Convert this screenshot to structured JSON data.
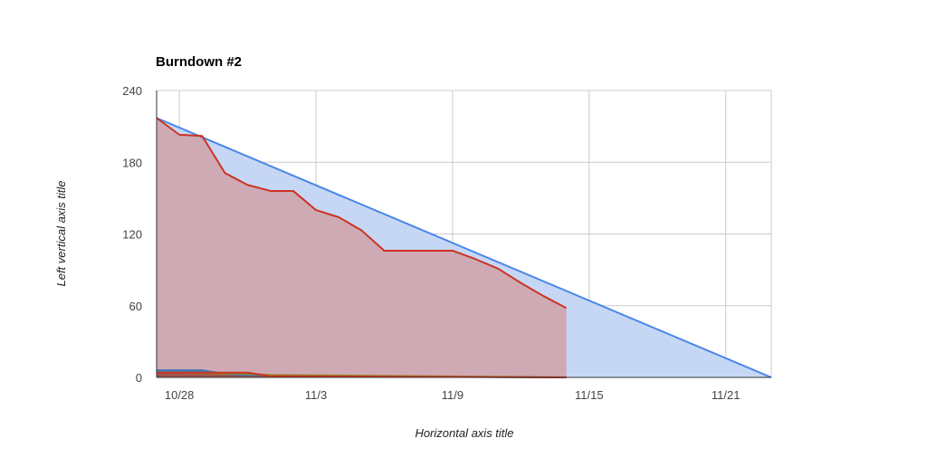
{
  "chart_data": {
    "type": "area",
    "title": "Burndown #2",
    "xlabel": "Horizontal axis title",
    "ylabel": "Left vertical axis title",
    "x_axis": {
      "type": "date",
      "min": "2024-10-27",
      "max": "2024-11-23",
      "ticks": [
        "10/28",
        "11/3",
        "11/9",
        "11/15",
        "11/21"
      ],
      "tick_dates": [
        "2024-10-28",
        "2024-11-03",
        "2024-11-09",
        "2024-11-15",
        "2024-11-21"
      ]
    },
    "y_axis": {
      "min": 0,
      "max": 240,
      "ticks": [
        0,
        60,
        120,
        180,
        240
      ]
    },
    "grid": true,
    "legend": "none",
    "series": [
      {
        "color": "#4a86e8",
        "fill": "#c6d7f5",
        "points": [
          [
            "2024-10-27",
            217
          ],
          [
            "2024-11-23",
            0
          ]
        ]
      },
      {
        "color": "#cc3322",
        "fill": "#d0a8b0",
        "points": [
          [
            "2024-10-27",
            217
          ],
          [
            "2024-10-28",
            203
          ],
          [
            "2024-10-29",
            202
          ],
          [
            "2024-10-30",
            171
          ],
          [
            "2024-10-31",
            161
          ],
          [
            "2024-11-01",
            156
          ],
          [
            "2024-11-02",
            156
          ],
          [
            "2024-11-03",
            140
          ],
          [
            "2024-11-04",
            134
          ],
          [
            "2024-11-05",
            123
          ],
          [
            "2024-11-06",
            106
          ],
          [
            "2024-11-07",
            106
          ],
          [
            "2024-11-08",
            106
          ],
          [
            "2024-11-09",
            106
          ],
          [
            "2024-11-10",
            99
          ],
          [
            "2024-11-11",
            91
          ],
          [
            "2024-11-12",
            79
          ],
          [
            "2024-11-13",
            68
          ],
          [
            "2024-11-14",
            58
          ]
        ]
      },
      {
        "color": "#3d78b4",
        "fill": "#3d78b4",
        "points": [
          [
            "2024-10-27",
            6
          ],
          [
            "2024-10-29",
            6
          ],
          [
            "2024-10-30",
            3
          ],
          [
            "2024-10-31",
            2
          ],
          [
            "2024-11-05",
            1
          ],
          [
            "2024-11-14",
            0
          ]
        ]
      },
      {
        "color": "#8a8a2a",
        "fill": "#8a8a2a",
        "points": [
          [
            "2024-10-27",
            4
          ],
          [
            "2024-10-31",
            3
          ],
          [
            "2024-11-01",
            2
          ],
          [
            "2024-11-14",
            0
          ]
        ]
      },
      {
        "color": "#cc3322",
        "fill": "#a05050",
        "points": [
          [
            "2024-10-27",
            4
          ],
          [
            "2024-10-31",
            4
          ],
          [
            "2024-11-01",
            1
          ],
          [
            "2024-11-14",
            0
          ]
        ]
      }
    ]
  }
}
